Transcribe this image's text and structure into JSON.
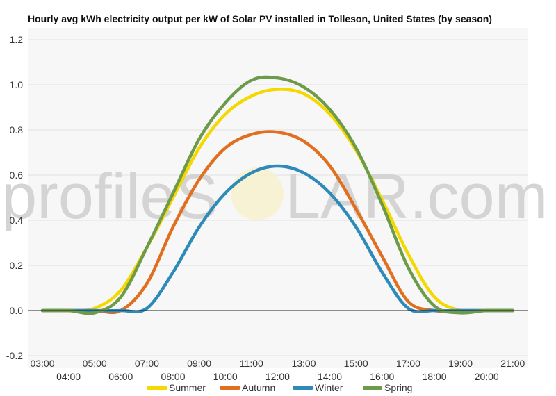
{
  "chart_data": {
    "type": "line",
    "title": "Hourly avg kWh electricity output per kW of Solar PV installed in Tolleson, United States (by season)",
    "xlabel": "",
    "ylabel": "",
    "ylim": [
      -0.2,
      1.2
    ],
    "yticks": [
      "-0.2",
      "0.0",
      "0.2",
      "0.4",
      "0.6",
      "0.8",
      "1.0",
      "1.2"
    ],
    "grid": true,
    "legend_position": "bottom",
    "x": [
      "03:00",
      "04:00",
      "05:00",
      "06:00",
      "07:00",
      "08:00",
      "09:00",
      "10:00",
      "11:00",
      "12:00",
      "13:00",
      "14:00",
      "15:00",
      "16:00",
      "17:00",
      "18:00",
      "19:00",
      "20:00",
      "21:00"
    ],
    "series": [
      {
        "name": "Summer",
        "color": "#f5d800",
        "values": [
          0,
          0,
          0.01,
          0.09,
          0.28,
          0.5,
          0.72,
          0.87,
          0.95,
          0.98,
          0.96,
          0.87,
          0.71,
          0.49,
          0.25,
          0.06,
          0,
          0,
          0
        ]
      },
      {
        "name": "Autumn",
        "color": "#e07020",
        "values": [
          0,
          0,
          0,
          0,
          0.12,
          0.37,
          0.58,
          0.72,
          0.78,
          0.79,
          0.75,
          0.64,
          0.45,
          0.24,
          0.04,
          0,
          0,
          0,
          0
        ]
      },
      {
        "name": "Winter",
        "color": "#2e8ab8",
        "values": [
          0,
          0,
          0,
          0,
          0.01,
          0.17,
          0.37,
          0.52,
          0.61,
          0.64,
          0.61,
          0.52,
          0.37,
          0.17,
          0.01,
          0,
          0,
          0,
          0
        ]
      },
      {
        "name": "Spring",
        "color": "#6e9b4a",
        "values": [
          0,
          0,
          -0.01,
          0.06,
          0.28,
          0.52,
          0.76,
          0.92,
          1.02,
          1.03,
          0.99,
          0.89,
          0.72,
          0.47,
          0.19,
          0.02,
          -0.01,
          0,
          0
        ]
      }
    ]
  },
  "watermark": {
    "text_left": "profileS",
    "text_right": "LAR.com"
  }
}
